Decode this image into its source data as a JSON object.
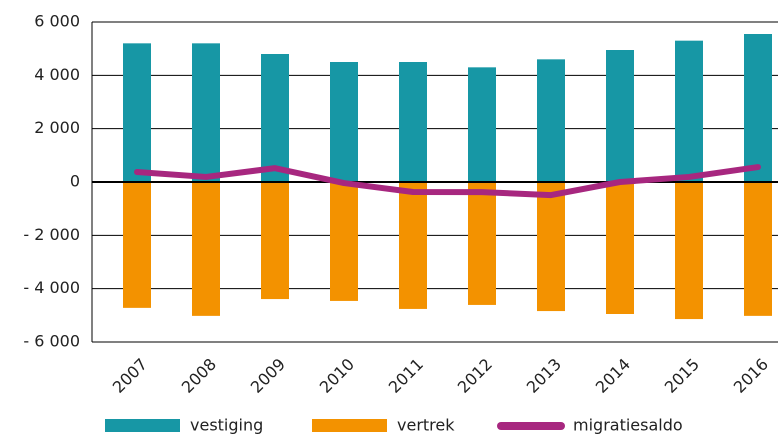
{
  "chart_data": {
    "type": "bar-line",
    "categories": [
      "2007",
      "2008",
      "2009",
      "2010",
      "2011",
      "2012",
      "2013",
      "2014",
      "2015",
      "2016"
    ],
    "series": [
      {
        "name": "vestiging",
        "color": "#1797a5",
        "kind": "bar",
        "values": [
          5200,
          5200,
          4800,
          4500,
          4500,
          4300,
          4600,
          4950,
          5300,
          5550
        ]
      },
      {
        "name": "vertrek",
        "color": "#f39200",
        "kind": "bar",
        "values": [
          -4720,
          -5020,
          -4390,
          -4460,
          -4760,
          -4610,
          -4840,
          -4950,
          -5140,
          -5020
        ]
      },
      {
        "name": "migratiesaldo",
        "color": "#a7277f",
        "kind": "line",
        "values": [
          375,
          190,
          520,
          -40,
          -375,
          -380,
          -490,
          0,
          190,
          560
        ]
      }
    ],
    "ylim": [
      -6000,
      6000
    ],
    "yticks": [
      {
        "value": -6000,
        "label": "- 6 000"
      },
      {
        "value": -4000,
        "label": "- 4 000"
      },
      {
        "value": -2000,
        "label": "- 2 000"
      },
      0,
      {
        "value": 2000,
        "label": "2 000"
      },
      {
        "value": 4000,
        "label": "4 000"
      },
      {
        "value": 6000,
        "label": "6 000"
      }
    ],
    "grid": true
  }
}
